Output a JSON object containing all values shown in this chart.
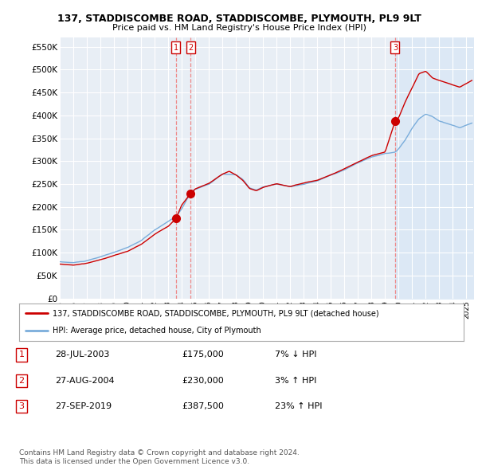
{
  "title": "137, STADDISCOMBE ROAD, STADDISCOMBE, PLYMOUTH, PL9 9LT",
  "subtitle": "Price paid vs. HM Land Registry's House Price Index (HPI)",
  "ylabel_ticks": [
    "£0",
    "£50K",
    "£100K",
    "£150K",
    "£200K",
    "£250K",
    "£300K",
    "£350K",
    "£400K",
    "£450K",
    "£500K",
    "£550K"
  ],
  "ylim": [
    0,
    570000
  ],
  "xlim_start": 1995.0,
  "xlim_end": 2025.5,
  "sale_dates": [
    2003.57,
    2004.65,
    2019.74
  ],
  "sale_prices": [
    175000,
    230000,
    387500
  ],
  "sale_labels": [
    "1",
    "2",
    "3"
  ],
  "legend_line1": "137, STADDISCOMBE ROAD, STADDISCOMBE, PLYMOUTH, PL9 9LT (detached house)",
  "legend_line2": "HPI: Average price, detached house, City of Plymouth",
  "table_rows": [
    [
      "1",
      "28-JUL-2003",
      "£175,000",
      "7% ↓ HPI"
    ],
    [
      "2",
      "27-AUG-2004",
      "£230,000",
      "3% ↑ HPI"
    ],
    [
      "3",
      "27-SEP-2019",
      "£387,500",
      "23% ↑ HPI"
    ]
  ],
  "footnote1": "Contains HM Land Registry data © Crown copyright and database right 2024.",
  "footnote2": "This data is licensed under the Open Government Licence v3.0.",
  "hpi_color": "#7aaddb",
  "price_color": "#cc0000",
  "bg_color": "#ffffff",
  "plot_bg_color": "#e8eef5",
  "grid_color": "#ffffff",
  "vline_color": "#ee8888",
  "shade_color": "#dce8f5"
}
